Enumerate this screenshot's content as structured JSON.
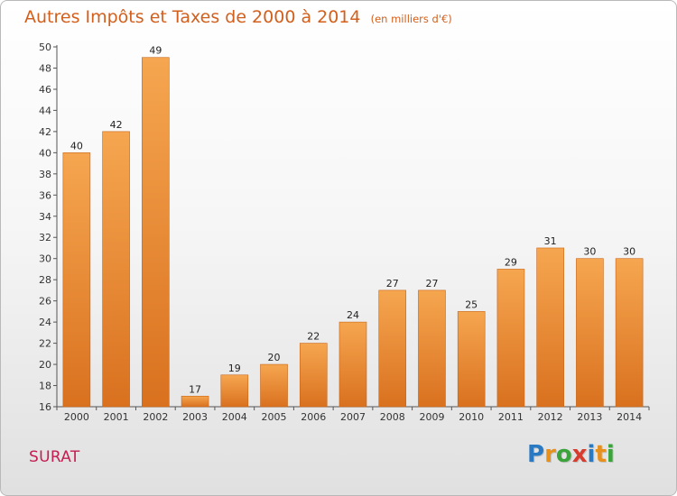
{
  "title": "Autres Impôts et Taxes de 2000 à 2014",
  "subtitle": "(en milliers d'€)",
  "place": "SURAT",
  "brand": {
    "letters": [
      "P",
      "r",
      "o",
      "x",
      "i",
      "t",
      "i"
    ],
    "colors": [
      "#2a79c3",
      "#e8901c",
      "#3aa43a",
      "#d73c2e",
      "#2a79c3",
      "#e8901c",
      "#3aa43a"
    ]
  },
  "colors": {
    "bar_light": "#f6a650",
    "bar_dark": "#d9711f",
    "bar_edge": "#c86414",
    "title": "#d35f1c",
    "place": "#c41e52"
  },
  "chart_data": {
    "type": "bar",
    "title": "Autres Impôts et Taxes de 2000 à 2014",
    "subtitle": "(en milliers d'€)",
    "categories": [
      "2000",
      "2001",
      "2002",
      "2003",
      "2004",
      "2005",
      "2006",
      "2007",
      "2008",
      "2009",
      "2010",
      "2011",
      "2012",
      "2013",
      "2014"
    ],
    "values": [
      40,
      42,
      49,
      17,
      19,
      20,
      22,
      24,
      27,
      27,
      25,
      29,
      31,
      30,
      30
    ],
    "ylim": [
      16,
      50
    ],
    "yticks": [
      16,
      18,
      20,
      22,
      24,
      26,
      28,
      30,
      32,
      34,
      36,
      38,
      40,
      42,
      44,
      46,
      48,
      50
    ],
    "grid": false,
    "legend": "none"
  }
}
